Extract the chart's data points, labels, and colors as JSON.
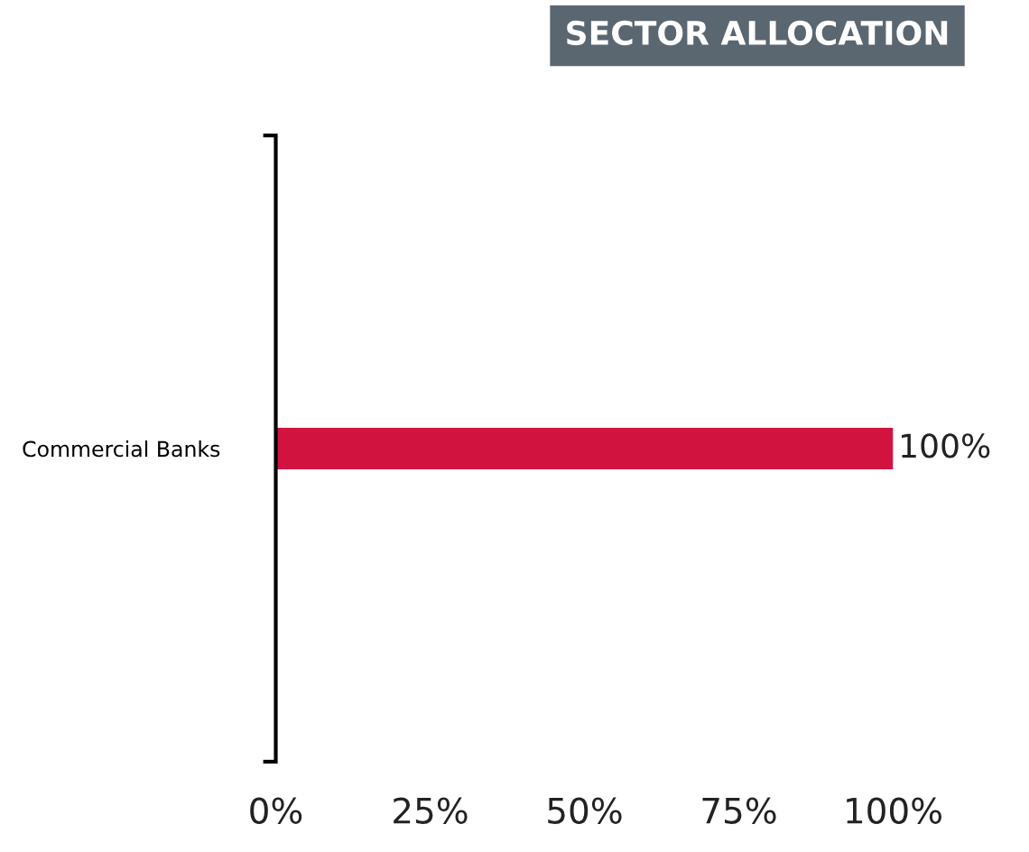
{
  "chart_data": {
    "type": "bar",
    "orientation": "horizontal",
    "title": "SECTOR ALLOCATION",
    "categories": [
      "Commercial Banks"
    ],
    "values": [
      100
    ],
    "color": "#d0143f",
    "value_labels": [
      "100%"
    ],
    "xlim": [
      0,
      100
    ],
    "xticks": [
      {
        "value": 0,
        "label": "0%"
      },
      {
        "value": 25,
        "label": "25%"
      },
      {
        "value": 50,
        "label": "50%"
      },
      {
        "value": 75,
        "label": "75%"
      },
      {
        "value": 100,
        "label": "100%"
      }
    ],
    "grid": false,
    "legend": false
  }
}
